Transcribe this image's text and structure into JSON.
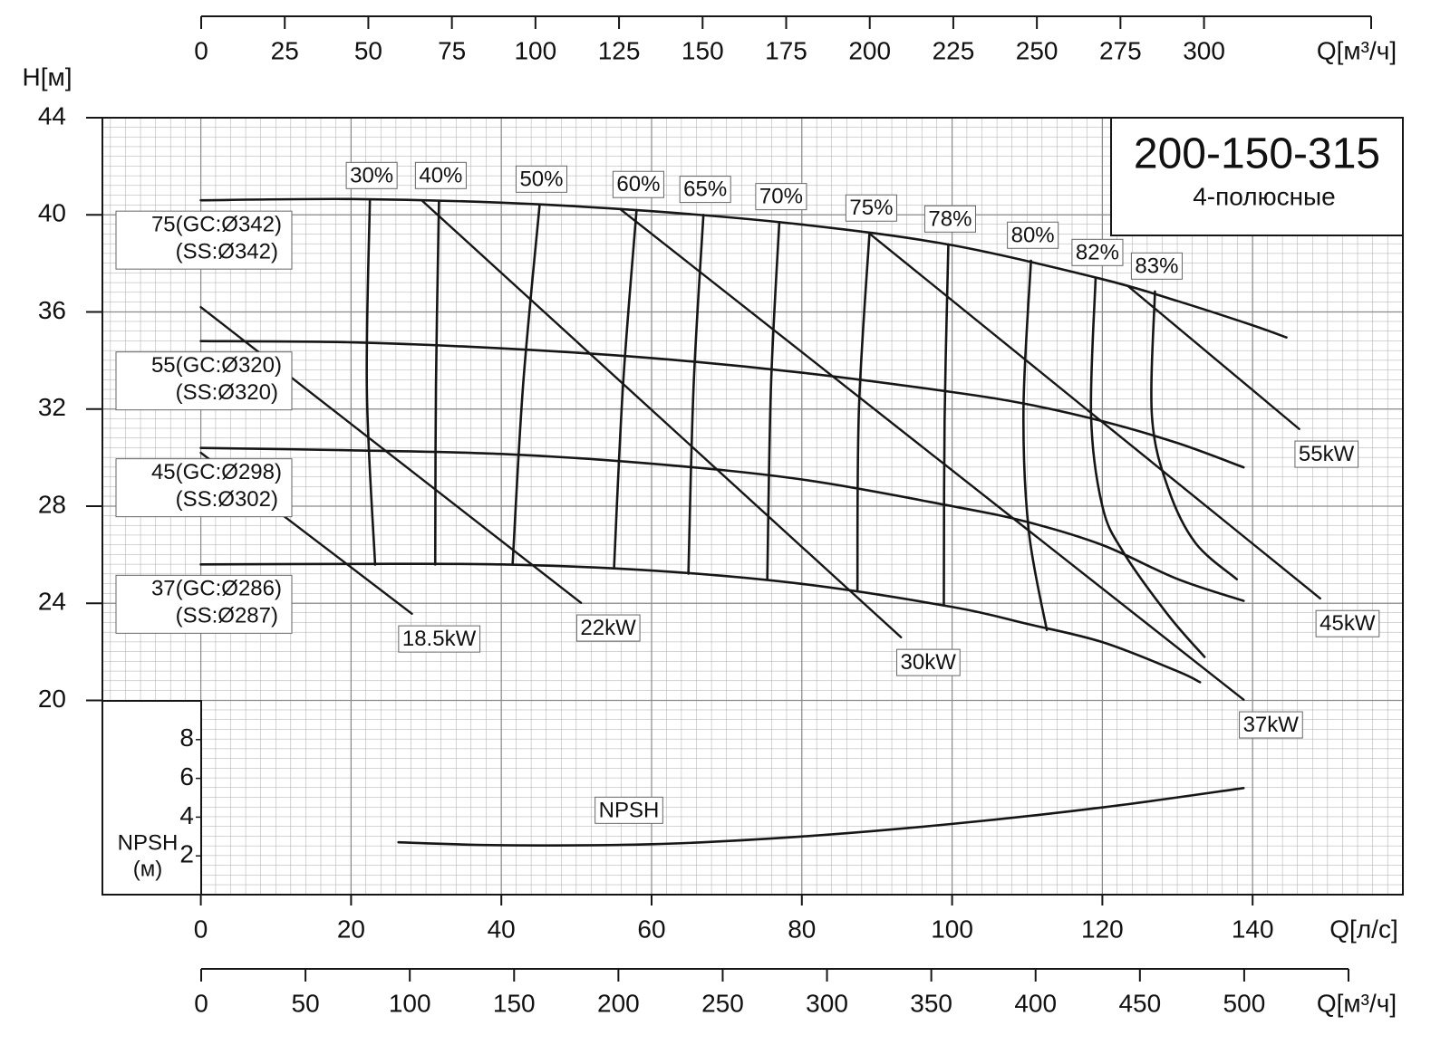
{
  "chart_data": {
    "type": "line",
    "title": "200-150-315",
    "subtitle": "4-полюсные",
    "y_label": "H[м]",
    "x_label": "Q[л/с]",
    "xlim": [
      -13.1,
      160
    ],
    "xticks": [
      0,
      20,
      40,
      60,
      80,
      100,
      120,
      140
    ],
    "ylim": [
      12,
      44
    ],
    "yticks": [
      20,
      24,
      28,
      32,
      36,
      40,
      44
    ],
    "grid": true,
    "line_color": "#161616",
    "top_axis": {
      "label": "Q[м³/ч]",
      "xlim": [
        0,
        350
      ],
      "xticks": [
        0,
        25,
        50,
        75,
        100,
        125,
        150,
        175,
        200,
        225,
        250,
        275,
        300
      ]
    },
    "bottom_axis": {
      "label": "Q[м³/ч]",
      "xlim": [
        0,
        550
      ],
      "xticks": [
        0,
        50,
        100,
        150,
        200,
        250,
        300,
        350,
        400,
        450,
        500
      ]
    },
    "head_curves": [
      {
        "label": [
          "75(GC:Ø342)",
          "(SS:Ø342)"
        ],
        "x": [
          0,
          20,
          40,
          60,
          80,
          100,
          120,
          130,
          140,
          144.5
        ],
        "values": [
          40.6,
          40.65,
          40.5,
          40.15,
          39.6,
          38.75,
          37.35,
          36.45,
          35.45,
          34.95
        ]
      },
      {
        "label": [
          "55(GC:Ø320)",
          "(SS:Ø320)"
        ],
        "x": [
          0,
          20,
          40,
          60,
          80,
          100,
          110,
          120,
          130,
          138.8
        ],
        "values": [
          34.8,
          34.75,
          34.5,
          34.1,
          33.5,
          32.7,
          32.2,
          31.5,
          30.6,
          29.6
        ]
      },
      {
        "label": [
          "45(GC:Ø298)",
          "(SS:Ø302)"
        ],
        "x": [
          0,
          20,
          40,
          60,
          80,
          100,
          110,
          120,
          130,
          138.8
        ],
        "values": [
          30.4,
          30.3,
          30.15,
          29.75,
          29.1,
          28.0,
          27.35,
          26.4,
          25.0,
          24.1
        ]
      },
      {
        "label": [
          "37(GC:Ø286)",
          "(SS:Ø287)"
        ],
        "x": [
          0,
          20,
          40,
          60,
          80,
          100,
          110,
          120,
          130,
          133
        ],
        "values": [
          25.6,
          25.62,
          25.6,
          25.35,
          24.8,
          23.85,
          23.15,
          22.4,
          21.2,
          20.75
        ]
      }
    ],
    "efficiency_curves": [
      {
        "name": "30%",
        "x": [
          22.5,
          22.1,
          23.2
        ],
        "values": [
          40.57,
          32.8,
          25.59
        ]
      },
      {
        "name": "40%",
        "x": [
          31.7,
          31.3,
          31.2
        ],
        "values": [
          40.57,
          33.0,
          25.6
        ]
      },
      {
        "name": "50%",
        "x": [
          45.1,
          42.9,
          41.5
        ],
        "values": [
          40.42,
          33.0,
          25.6
        ]
      },
      {
        "name": "60%",
        "x": [
          58.0,
          56.2,
          55.0
        ],
        "values": [
          40.2,
          33.0,
          25.44
        ]
      },
      {
        "name": "65%",
        "x": [
          66.9,
          65.6,
          64.9
        ],
        "values": [
          40.0,
          33.0,
          25.22
        ]
      },
      {
        "name": "70%",
        "x": [
          77.0,
          75.9,
          75.4
        ],
        "values": [
          39.7,
          33.0,
          24.99
        ]
      },
      {
        "name": "75%",
        "x": [
          89.0,
          87.6,
          87.4
        ],
        "values": [
          39.23,
          32.0,
          24.54
        ]
      },
      {
        "name": "78%",
        "x": [
          99.5,
          99.0,
          98.9
        ],
        "values": [
          38.78,
          31.5,
          23.91
        ]
      },
      {
        "name": "80%",
        "x": [
          110.5,
          109.5,
          110.2,
          112.6
        ],
        "values": [
          38.11,
          32.0,
          27.0,
          22.9
        ]
      },
      {
        "name": "82%",
        "x": [
          119.1,
          118.5,
          120.0,
          122.8,
          128.8,
          133.6
        ],
        "values": [
          37.4,
          31.7,
          28.0,
          26.1,
          23.5,
          21.79
        ]
      },
      {
        "name": "83%",
        "x": [
          127.0,
          126.6,
          128.8,
          132.4,
          137.9
        ],
        "values": [
          36.84,
          31.7,
          28.7,
          26.48,
          24.99
        ]
      }
    ],
    "power_curves": [
      {
        "name": "18.5kW",
        "x": [
          0,
          28.1
        ],
        "values": [
          30.2,
          23.57
        ]
      },
      {
        "name": "22kW",
        "x": [
          0,
          50.6
        ],
        "values": [
          36.2,
          24.02
        ]
      },
      {
        "name": "30kW",
        "x": [
          29.5,
          93.2
        ],
        "values": [
          40.57,
          22.6
        ]
      },
      {
        "name": "37kW",
        "x": [
          55.8,
          138.8
        ],
        "values": [
          40.24,
          20.03
        ]
      },
      {
        "name": "45kW",
        "x": [
          89.0,
          149.0
        ],
        "values": [
          39.23,
          24.2
        ]
      },
      {
        "name": "55kW",
        "x": [
          123.4,
          146.2
        ],
        "values": [
          37.07,
          31.18
        ]
      }
    ],
    "npsh": {
      "name": "NPSH",
      "y_label": [
        "NPSH",
        "(м)"
      ],
      "ylim": [
        0,
        10
      ],
      "yticks": [
        2,
        4,
        6,
        8
      ],
      "x": [
        26.3,
        40,
        60,
        80,
        100,
        120,
        138.8
      ],
      "values": [
        2.7,
        2.55,
        2.6,
        3.0,
        3.65,
        4.5,
        5.5
      ]
    }
  }
}
